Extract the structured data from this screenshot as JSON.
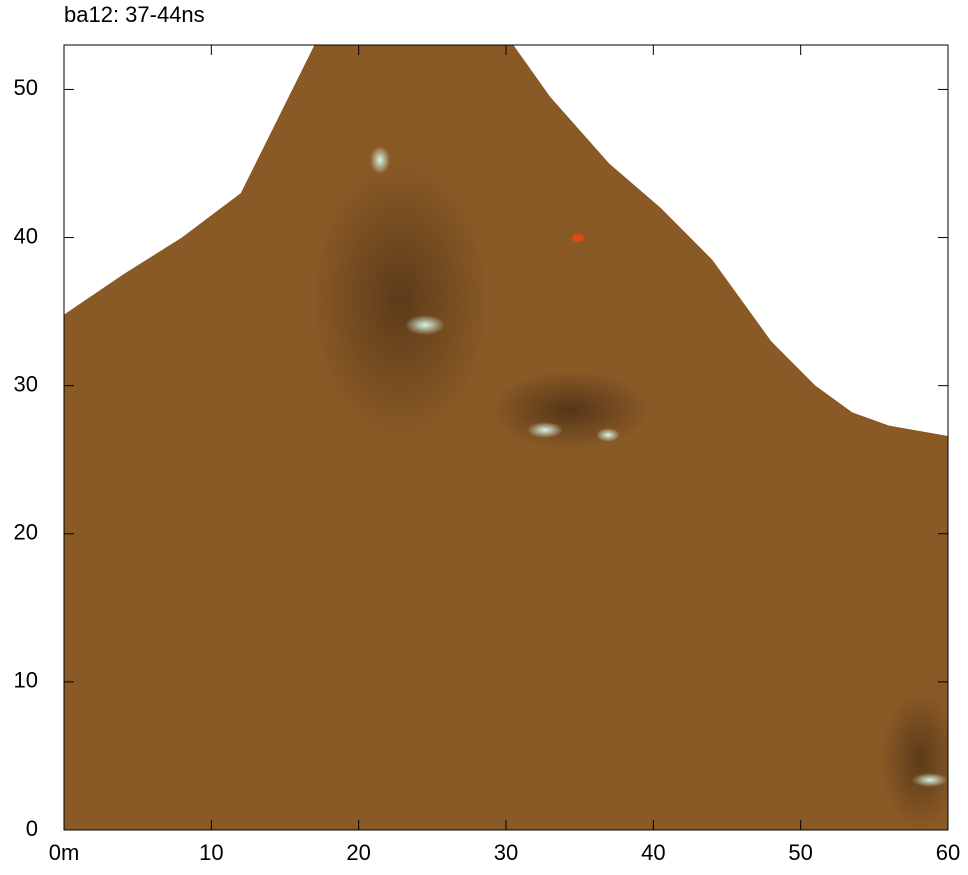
{
  "chart_data": {
    "type": "map",
    "title": "ba12: 37-44ns",
    "xlim": [
      0,
      60
    ],
    "ylim": [
      0,
      53
    ],
    "xticks": [
      {
        "value": 0,
        "label": "0m"
      },
      10,
      20,
      30,
      40,
      50,
      60
    ],
    "yticks": [
      0,
      10,
      20,
      30,
      40,
      50
    ],
    "color": "#8a5a26",
    "outline": {
      "x": [
        0,
        0,
        4,
        8,
        12,
        17,
        30.5,
        33,
        37,
        40.5,
        44,
        48,
        51,
        53.5,
        56,
        60,
        60
      ],
      "y": [
        0,
        34.8,
        37.5,
        40,
        43,
        53,
        53,
        49.5,
        45,
        42,
        38.5,
        33,
        30,
        28.2,
        27.3,
        26.6,
        0
      ]
    }
  }
}
